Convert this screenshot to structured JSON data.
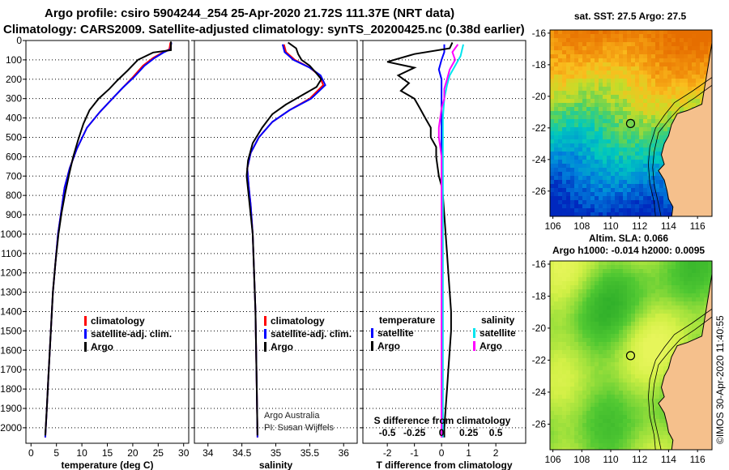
{
  "titles": {
    "line1": "Argo profile: csiro 5904244_254 25-Apr-2020 21.72S 111.37E (NRT data)",
    "line2": "Climatology: CARS2009. Satellite-adjusted climatology: synTS_20200425.nc (0.38d earlier)"
  },
  "map_titles": {
    "sst": "sat. SST: 27.5 Argo: 27.5",
    "sla_line1": "Altim. SLA: 0.066",
    "sla_line2": "Argo h1000: -0.014 h2000: 0.0095"
  },
  "credit": "©IMOS 30-Apr-2020 11:40:55",
  "colors": {
    "climatology": "#ff0000",
    "satellite": "#0000ff",
    "argo": "#000000",
    "salinity_satellite": "#00e5ee",
    "salinity_argo": "#ff00ff",
    "land": "#f5c08c",
    "coast": "#000000"
  },
  "depth_axis": {
    "ylim": [
      0,
      2080
    ],
    "ticks": [
      0,
      100,
      200,
      300,
      400,
      500,
      600,
      700,
      800,
      900,
      1000,
      1100,
      1200,
      1300,
      1400,
      1500,
      1600,
      1700,
      1800,
      1900,
      2000
    ]
  },
  "chart_data": [
    {
      "type": "line",
      "panel": "temperature",
      "xlabel": "temperature (deg C)",
      "xlim": [
        -1,
        31
      ],
      "xticks": [
        0,
        5,
        10,
        15,
        20,
        25,
        30
      ],
      "legend": [
        "climatology",
        "satellite-adj. clim.",
        "Argo"
      ],
      "series": [
        {
          "name": "climatology",
          "color": "#ff0000",
          "points": [
            [
              27.4,
              10
            ],
            [
              27.2,
              45
            ],
            [
              26,
              60
            ],
            [
              24,
              90
            ],
            [
              22,
              130
            ],
            [
              20,
              190
            ],
            [
              18,
              245
            ],
            [
              16,
              300
            ],
            [
              13.5,
              370
            ],
            [
              11,
              450
            ],
            [
              9,
              560
            ],
            [
              7.6,
              660
            ],
            [
              6.6,
              760
            ],
            [
              6,
              870
            ],
            [
              5.3,
              1000
            ],
            [
              4.8,
              1150
            ],
            [
              4.3,
              1300
            ],
            [
              4,
              1450
            ],
            [
              3.7,
              1600
            ],
            [
              3.4,
              1750
            ],
            [
              3.1,
              1900
            ],
            [
              2.8,
              2050
            ]
          ]
        },
        {
          "name": "satellite-adj. clim.",
          "color": "#0000ff",
          "points": [
            [
              27.6,
              10
            ],
            [
              27.4,
              45
            ],
            [
              26.2,
              60
            ],
            [
              24.3,
              90
            ],
            [
              22.3,
              130
            ],
            [
              20.2,
              190
            ],
            [
              18,
              245
            ],
            [
              16,
              300
            ],
            [
              13.5,
              370
            ],
            [
              11,
              450
            ],
            [
              9,
              560
            ],
            [
              7.6,
              660
            ],
            [
              6.6,
              760
            ],
            [
              6,
              870
            ],
            [
              5.3,
              1000
            ],
            [
              4.8,
              1150
            ],
            [
              4.3,
              1300
            ],
            [
              4,
              1450
            ],
            [
              3.7,
              1600
            ],
            [
              3.4,
              1750
            ],
            [
              3.1,
              1900
            ],
            [
              2.8,
              2050
            ]
          ]
        },
        {
          "name": "Argo",
          "color": "#000000",
          "points": [
            [
              27.5,
              5
            ],
            [
              27.5,
              50
            ],
            [
              24,
              62
            ],
            [
              21,
              100
            ],
            [
              19,
              155
            ],
            [
              17,
              205
            ],
            [
              15.4,
              250
            ],
            [
              13.3,
              300
            ],
            [
              11.5,
              360
            ],
            [
              10.3,
              430
            ],
            [
              9.3,
              510
            ],
            [
              8.3,
              600
            ],
            [
              7.5,
              690
            ],
            [
              6.7,
              790
            ],
            [
              6,
              890
            ],
            [
              5.4,
              1000
            ],
            [
              4.8,
              1150
            ],
            [
              4.3,
              1300
            ],
            [
              4,
              1450
            ],
            [
              3.7,
              1600
            ],
            [
              3.4,
              1750
            ],
            [
              3.1,
              1900
            ],
            [
              2.8,
              2040
            ]
          ]
        }
      ]
    },
    {
      "type": "line",
      "panel": "salinity",
      "xlabel": "salinity",
      "xlim": [
        33.8,
        36.2
      ],
      "xticks": [
        34,
        34.5,
        35,
        35.5,
        36
      ],
      "legend": [
        "climatology",
        "satellite-adj. clim.",
        "Argo"
      ],
      "annotations": [
        "Argo Australia",
        "PI: Susan Wijffels"
      ],
      "series": [
        {
          "name": "climatology",
          "color": "#ff0000",
          "points": [
            [
              35.12,
              20
            ],
            [
              35.15,
              60
            ],
            [
              35.28,
              100
            ],
            [
              35.5,
              140
            ],
            [
              35.64,
              180
            ],
            [
              35.7,
              230
            ],
            [
              35.5,
              300
            ],
            [
              35.2,
              360
            ],
            [
              34.95,
              420
            ],
            [
              34.75,
              500
            ],
            [
              34.63,
              580
            ],
            [
              34.58,
              660
            ],
            [
              34.6,
              750
            ],
            [
              34.63,
              850
            ],
            [
              34.66,
              1000
            ],
            [
              34.68,
              1200
            ],
            [
              34.7,
              1400
            ],
            [
              34.71,
              1600
            ],
            [
              34.72,
              1800
            ],
            [
              34.73,
              2050
            ]
          ]
        },
        {
          "name": "satellite-adj. clim.",
          "color": "#0000ff",
          "points": [
            [
              35.1,
              20
            ],
            [
              35.13,
              60
            ],
            [
              35.26,
              100
            ],
            [
              35.5,
              140
            ],
            [
              35.66,
              180
            ],
            [
              35.73,
              230
            ],
            [
              35.52,
              300
            ],
            [
              35.2,
              360
            ],
            [
              34.95,
              420
            ],
            [
              34.75,
              500
            ],
            [
              34.63,
              580
            ],
            [
              34.58,
              660
            ],
            [
              34.6,
              750
            ],
            [
              34.63,
              850
            ],
            [
              34.66,
              1000
            ],
            [
              34.68,
              1200
            ],
            [
              34.7,
              1400
            ],
            [
              34.71,
              1600
            ],
            [
              34.72,
              1800
            ],
            [
              34.73,
              2050
            ]
          ]
        },
        {
          "name": "Argo",
          "color": "#000000",
          "points": [
            [
              35.18,
              10
            ],
            [
              35.3,
              40
            ],
            [
              35.33,
              70
            ],
            [
              35.38,
              100
            ],
            [
              35.5,
              130
            ],
            [
              35.6,
              170
            ],
            [
              35.67,
              200
            ],
            [
              35.6,
              240
            ],
            [
              35.4,
              280
            ],
            [
              35.15,
              330
            ],
            [
              34.95,
              380
            ],
            [
              34.8,
              450
            ],
            [
              34.66,
              530
            ],
            [
              34.59,
              620
            ],
            [
              34.57,
              700
            ],
            [
              34.6,
              800
            ],
            [
              34.63,
              900
            ],
            [
              34.66,
              1000
            ],
            [
              34.68,
              1200
            ],
            [
              34.7,
              1400
            ],
            [
              34.71,
              1600
            ],
            [
              34.72,
              1800
            ],
            [
              34.73,
              2040
            ]
          ]
        }
      ]
    },
    {
      "type": "line",
      "panel": "difference",
      "xlabel": "T difference from climatology",
      "secondary_xlabel": "S difference from climatology",
      "xlim": [
        -2.9,
        3.1
      ],
      "xticks": [
        -2,
        -1,
        0,
        1,
        2
      ],
      "secondary_xticks": [
        "-0.5",
        "-0.25",
        "0",
        "0.25",
        "0.5"
      ],
      "legend_headers": [
        "temperature",
        "salinity"
      ],
      "legend": [
        "satellite",
        "Argo",
        "satellite",
        "Argo"
      ],
      "series": [
        {
          "name": "temperature satellite",
          "color": "#0000ff",
          "points": [
            [
              0.1,
              20
            ],
            [
              0.1,
              60
            ],
            [
              0,
              100
            ],
            [
              -0.1,
              150
            ],
            [
              0,
              200
            ],
            [
              0,
              260
            ],
            [
              0,
              320
            ],
            [
              0,
              400
            ],
            [
              0,
              500
            ],
            [
              0,
              600
            ],
            [
              0.02,
              700
            ],
            [
              0.02,
              900
            ],
            [
              0.02,
              1200
            ],
            [
              0.02,
              1600
            ],
            [
              0.02,
              2050
            ]
          ]
        },
        {
          "name": "temperature Argo",
          "color": "#000000",
          "points": [
            [
              0.4,
              10
            ],
            [
              0.3,
              40
            ],
            [
              -1,
              70
            ],
            [
              -2,
              110
            ],
            [
              -1,
              140
            ],
            [
              -1.6,
              180
            ],
            [
              -1.2,
              220
            ],
            [
              -1.5,
              260
            ],
            [
              -1,
              300
            ],
            [
              -0.8,
              350
            ],
            [
              -0.6,
              400
            ],
            [
              -0.4,
              450
            ],
            [
              -0.4,
              500
            ],
            [
              -0.2,
              550
            ],
            [
              -0.2,
              600
            ],
            [
              -0.15,
              650
            ],
            [
              -0.1,
              700
            ],
            [
              0,
              750
            ],
            [
              0.05,
              800
            ],
            [
              0.1,
              900
            ],
            [
              0.15,
              1000
            ],
            [
              0.2,
              1100
            ],
            [
              0.25,
              1200
            ],
            [
              0.3,
              1300
            ],
            [
              0.35,
              1400
            ],
            [
              0.35,
              1500
            ],
            [
              0.3,
              1600
            ],
            [
              0.25,
              1700
            ],
            [
              0.2,
              1800
            ],
            [
              0.15,
              1900
            ],
            [
              0.1,
              2000
            ],
            [
              0.1,
              2050
            ]
          ]
        },
        {
          "name": "salinity satellite",
          "color": "#00e5ee",
          "points": [
            [
              0.8,
              20
            ],
            [
              0.7,
              80
            ],
            [
              0.5,
              130
            ],
            [
              0.3,
              180
            ],
            [
              0.2,
              230
            ],
            [
              0.1,
              300
            ],
            [
              0.05,
              400
            ],
            [
              0.05,
              500
            ],
            [
              0.05,
              700
            ],
            [
              0.05,
              1000
            ],
            [
              0.05,
              1500
            ],
            [
              0.05,
              2050
            ]
          ]
        },
        {
          "name": "salinity Argo",
          "color": "#ff00ff",
          "points": [
            [
              0.6,
              20
            ],
            [
              0.4,
              60
            ],
            [
              0.5,
              100
            ],
            [
              0.3,
              150
            ],
            [
              0.2,
              200
            ],
            [
              0.1,
              250
            ],
            [
              0.1,
              300
            ],
            [
              0,
              350
            ],
            [
              -0.05,
              400
            ],
            [
              -0.1,
              450
            ],
            [
              -0.1,
              500
            ],
            [
              -0.05,
              550
            ],
            [
              0,
              600
            ],
            [
              0,
              700
            ],
            [
              0,
              900
            ],
            [
              0,
              1200
            ],
            [
              0,
              1600
            ],
            [
              0,
              2050
            ]
          ]
        }
      ]
    },
    {
      "type": "heatmap",
      "panel": "sst-map",
      "title": "sat. SST: 27.5 Argo: 27.5",
      "xlim": [
        105.8,
        117
      ],
      "ylim": [
        -27.6,
        -15.8
      ],
      "xticks": [
        106,
        108,
        110,
        112,
        114,
        116
      ],
      "yticks": [
        -16,
        -18,
        -20,
        -22,
        -24,
        -26
      ],
      "argo_position": {
        "lon": 111.37,
        "lat": -21.72
      },
      "sst_value": 27.5
    },
    {
      "type": "heatmap",
      "panel": "sla-map",
      "title": "Altim. SLA: 0.066",
      "xlim": [
        105.8,
        117
      ],
      "ylim": [
        -27.6,
        -15.8
      ],
      "xticks": [
        106,
        108,
        110,
        112,
        114,
        116
      ],
      "yticks": [
        -16,
        -18,
        -20,
        -22,
        -24,
        -26
      ],
      "argo_position": {
        "lon": 111.37,
        "lat": -21.72
      },
      "sla_value": 0.066
    }
  ]
}
